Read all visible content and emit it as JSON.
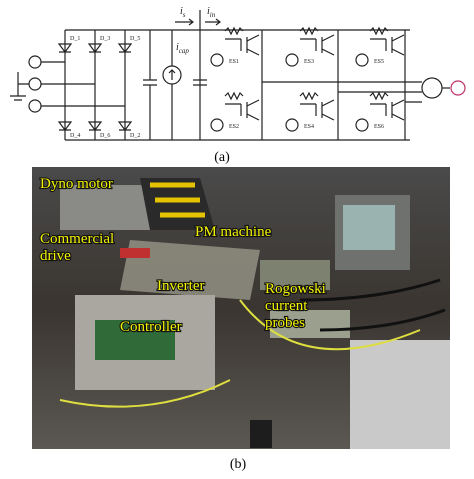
{
  "figure": {
    "schematic": {
      "currents": [
        {
          "symbol": "i",
          "subscript": "s"
        },
        {
          "symbol": "i",
          "subscript": "in"
        },
        {
          "symbol": "i",
          "subscript": "cap"
        }
      ],
      "diodes": [
        "D_1",
        "D_3",
        "D_5",
        "D_4",
        "D_6",
        "D_2"
      ],
      "sources": [
        "ES1",
        "ES3",
        "ES5",
        "ES2",
        "ES4",
        "ES6"
      ],
      "caption": "(a)"
    },
    "photo": {
      "labels": [
        {
          "lines": [
            "Dyno motor"
          ]
        },
        {
          "lines": [
            "Commercial",
            "drive"
          ]
        },
        {
          "lines": [
            "PM machine"
          ]
        },
        {
          "lines": [
            "Inverter"
          ]
        },
        {
          "lines": [
            "Rogowski",
            "current",
            "probes"
          ]
        },
        {
          "lines": [
            "Controller"
          ]
        }
      ],
      "caption": "(b)"
    }
  }
}
